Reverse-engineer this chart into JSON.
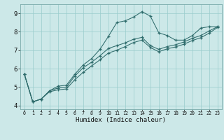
{
  "xlabel": "Humidex (Indice chaleur)",
  "bg_color": "#cce8e8",
  "grid_color": "#99cccc",
  "line_color": "#2e6b6b",
  "xlim": [
    -0.5,
    23.5
  ],
  "ylim": [
    3.8,
    9.5
  ],
  "xticks": [
    0,
    1,
    2,
    3,
    4,
    5,
    6,
    7,
    8,
    9,
    10,
    11,
    12,
    13,
    14,
    15,
    16,
    17,
    18,
    19,
    20,
    21,
    22,
    23
  ],
  "yticks": [
    4,
    5,
    6,
    7,
    8,
    9
  ],
  "line1_x": [
    0,
    1,
    2,
    3,
    4,
    5,
    6,
    7,
    8,
    9,
    10,
    11,
    12,
    13,
    14,
    15,
    16,
    17,
    18,
    19,
    20,
    21,
    22,
    23
  ],
  "line1_y": [
    5.7,
    4.2,
    4.35,
    4.8,
    5.05,
    5.1,
    5.7,
    6.2,
    6.55,
    7.05,
    7.75,
    8.5,
    8.6,
    8.8,
    9.1,
    8.85,
    7.95,
    7.8,
    7.55,
    7.55,
    7.8,
    8.2,
    8.28,
    8.28
  ],
  "line2_x": [
    0,
    1,
    2,
    3,
    4,
    5,
    6,
    7,
    8,
    9,
    10,
    11,
    12,
    13,
    14,
    15,
    16,
    17,
    18,
    19,
    20,
    21,
    22,
    23
  ],
  "line2_y": [
    5.7,
    4.2,
    4.35,
    4.8,
    4.95,
    5.0,
    5.6,
    6.05,
    6.35,
    6.7,
    7.1,
    7.25,
    7.4,
    7.6,
    7.7,
    7.25,
    7.05,
    7.2,
    7.3,
    7.45,
    7.65,
    7.8,
    8.05,
    8.28
  ],
  "line3_x": [
    0,
    1,
    2,
    3,
    4,
    5,
    6,
    7,
    8,
    9,
    10,
    11,
    12,
    13,
    14,
    15,
    16,
    17,
    18,
    19,
    20,
    21,
    22,
    23
  ],
  "line3_y": [
    5.7,
    4.2,
    4.35,
    4.75,
    4.85,
    4.9,
    5.4,
    5.8,
    6.15,
    6.48,
    6.85,
    7.0,
    7.2,
    7.42,
    7.55,
    7.15,
    6.92,
    7.08,
    7.18,
    7.33,
    7.53,
    7.68,
    7.93,
    8.24
  ]
}
